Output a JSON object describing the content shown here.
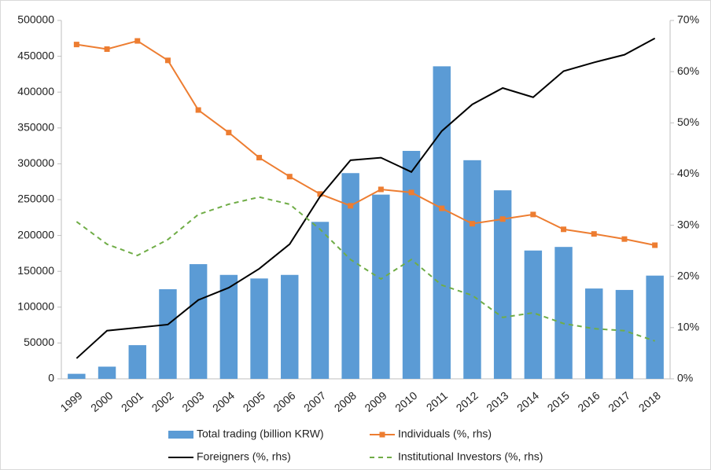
{
  "chart_data": {
    "type": "bar",
    "categories": [
      "1999",
      "2000",
      "2001",
      "2002",
      "2003",
      "2004",
      "2005",
      "2006",
      "2007",
      "2008",
      "2009",
      "2010",
      "2011",
      "2012",
      "2013",
      "2014",
      "2015",
      "2016",
      "2017",
      "2018"
    ],
    "series": [
      {
        "name": "Total trading (billion KRW)",
        "type": "bar",
        "color": "#5b9bd5",
        "values": [
          7000,
          17000,
          47000,
          125000,
          160000,
          145000,
          140000,
          145000,
          219000,
          287000,
          257000,
          318000,
          436000,
          305000,
          263000,
          179000,
          184000,
          126000,
          124000,
          144000
        ]
      },
      {
        "name": "Individuals (%, rhs)",
        "type": "line",
        "axis": "y2",
        "color": "#ed7d31",
        "marker": "square",
        "values": [
          65.3,
          64.4,
          66.0,
          62.2,
          52.5,
          48.1,
          43.2,
          39.5,
          36.1,
          33.8,
          37.0,
          36.4,
          33.3,
          30.3,
          31.2,
          32.1,
          29.2,
          28.3,
          27.3,
          26.1
        ]
      },
      {
        "name": "Foreigners  (%, rhs)",
        "type": "line",
        "axis": "y2",
        "color": "#000000",
        "values": [
          4.0,
          9.4,
          10.0,
          10.6,
          15.4,
          17.8,
          21.5,
          26.3,
          35.6,
          42.7,
          43.2,
          40.4,
          48.4,
          53.6,
          56.8,
          55.0,
          60.1,
          61.8,
          63.3,
          66.5
        ]
      },
      {
        "name": "Institutional Investors (%, rhs)",
        "type": "line",
        "axis": "y2",
        "color": "#70ad47",
        "dashed": true,
        "values": [
          30.7,
          26.3,
          24.1,
          27.2,
          32.1,
          34.1,
          35.5,
          34.1,
          29.2,
          23.3,
          19.5,
          23.3,
          18.3,
          16.3,
          12.0,
          12.9,
          10.8,
          9.8,
          9.4,
          7.4
        ]
      }
    ],
    "ylim": [
      0,
      500000
    ],
    "yticks": [
      0,
      50000,
      100000,
      150000,
      200000,
      250000,
      300000,
      350000,
      400000,
      450000,
      500000
    ],
    "y2lim": [
      0,
      70
    ],
    "y2ticks": [
      {
        "value": 0,
        "label": "0%"
      },
      {
        "value": 10,
        "label": "10%"
      },
      {
        "value": 20,
        "label": "20%"
      },
      {
        "value": 30,
        "label": "30%"
      },
      {
        "value": 40,
        "label": "40%"
      },
      {
        "value": 50,
        "label": "50%"
      },
      {
        "value": 60,
        "label": "60%"
      },
      {
        "value": 70,
        "label": "70%"
      }
    ],
    "legend": "bottom"
  }
}
